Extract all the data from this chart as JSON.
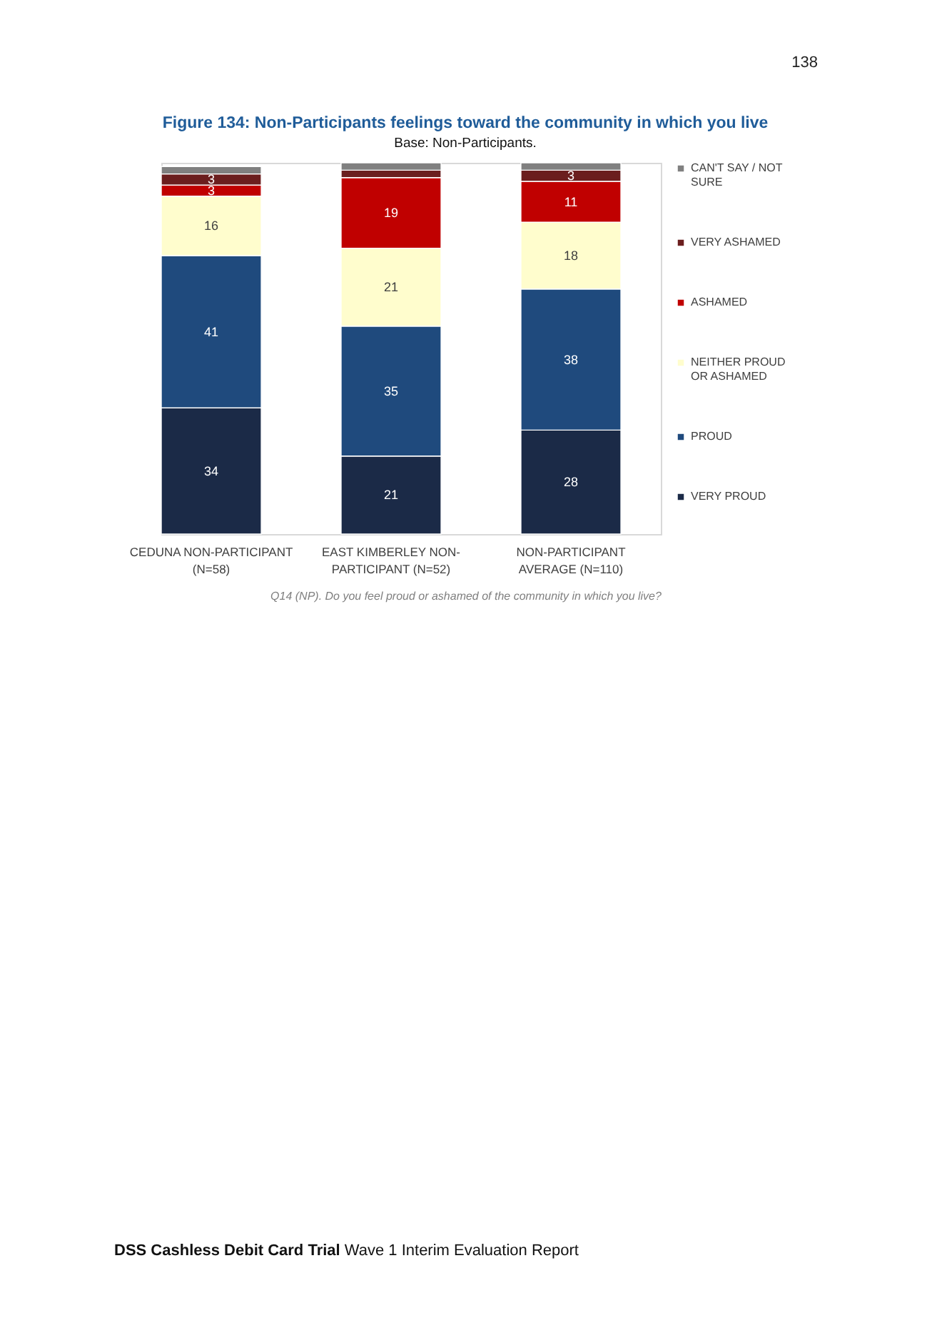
{
  "chart_data": {
    "type": "bar",
    "title": "Figure 134: Non-Participants feelings toward the community in which you live",
    "subtitle": "Base: Non-Participants.",
    "categories": [
      "CEDUNA NON-PARTICIPANT (N=58)",
      "EAST KIMBERLEY NON-PARTICIPANT (N=52)",
      "NON-PARTICIPANT AVERAGE (N=110)"
    ],
    "stacked": true,
    "series": [
      {
        "name": "VERY PROUD",
        "color": "#1b2a47",
        "values": [
          34,
          21,
          28
        ],
        "value_labels": [
          "34",
          "21",
          "28"
        ]
      },
      {
        "name": "PROUD",
        "color": "#1f4a7d",
        "values": [
          41,
          35,
          38
        ],
        "value_labels": [
          "41",
          "35",
          "38"
        ]
      },
      {
        "name": "NEITHER PROUD OR ASHAMED",
        "color": "#fffdcd",
        "values": [
          16,
          21,
          18
        ],
        "value_labels": [
          "16",
          "21",
          "18"
        ]
      },
      {
        "name": "ASHAMED",
        "color": "#c00000",
        "values": [
          3,
          19,
          11
        ],
        "value_labels": [
          "3",
          "19",
          "11"
        ]
      },
      {
        "name": "VERY ASHAMED",
        "color": "#6b1e1e",
        "values": [
          3,
          2,
          3
        ],
        "value_labels": [
          "3",
          null,
          "3"
        ]
      },
      {
        "name": "CAN'T SAY / NOT SURE",
        "color": "#808080",
        "values": [
          2,
          2,
          2
        ],
        "value_labels": [
          null,
          null,
          null
        ]
      }
    ],
    "legend": "right",
    "tick_labels": "x",
    "annotations": [
      "Q14 (NP). Do you feel proud or ashamed of the community in which you live?",
      "138",
      "DSS Cashless Debit Card Trial",
      "Wave 1 Interim Evaluation Report"
    ]
  }
}
